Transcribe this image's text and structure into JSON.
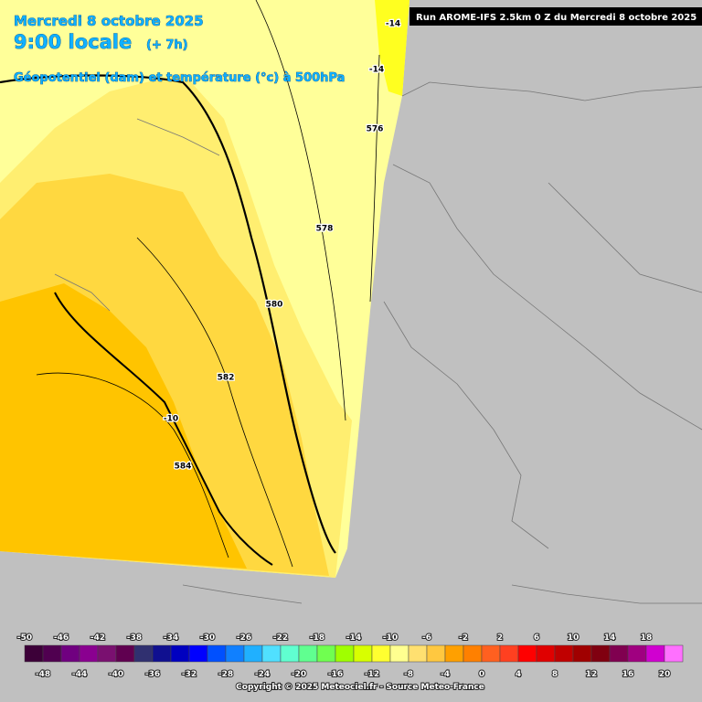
{
  "header": {
    "date": "Mercredi 8 octobre 2025",
    "time": "9:00 locale",
    "offset": "(+ 7h)",
    "parameter": "Géopotentiel (dam) et température (°c) à 500hPa"
  },
  "run_label": "Run AROME-IFS 2.5km 0 Z du Mercredi 8 octobre 2025",
  "contour_labels": [
    "-14",
    "-14",
    "576",
    "578",
    "580",
    "582",
    "-10",
    "584"
  ],
  "legend": {
    "values": [
      -50,
      -48,
      -46,
      -44,
      -42,
      -40,
      -38,
      -36,
      -34,
      -32,
      -30,
      -28,
      -26,
      -24,
      -22,
      -20,
      -18,
      -16,
      -14,
      -12,
      -10,
      -8,
      -6,
      -4,
      -2,
      0,
      2,
      4,
      6,
      8,
      10,
      12,
      14,
      16,
      18,
      20
    ],
    "colors": [
      "#3c0038",
      "#500050",
      "#700080",
      "#8a0090",
      "#7a1070",
      "#600050",
      "#303070",
      "#101090",
      "#0000c0",
      "#0000ff",
      "#0050ff",
      "#1080ff",
      "#20b0ff",
      "#50e0ff",
      "#60ffd0",
      "#60ff90",
      "#70ff50",
      "#a0ff00",
      "#d8ff00",
      "#ffff30",
      "#ffff90",
      "#ffe070",
      "#ffc840",
      "#ffa000",
      "#ff8000",
      "#ff6020",
      "#ff4020",
      "#ff0000",
      "#e00000",
      "#c00000",
      "#a00000",
      "#800010",
      "#800050",
      "#a00080",
      "#d000d0",
      "#ff70ff"
    ]
  },
  "copyright": "Copyright © 2025 Meteociel.fr - Source Meteo-France"
}
